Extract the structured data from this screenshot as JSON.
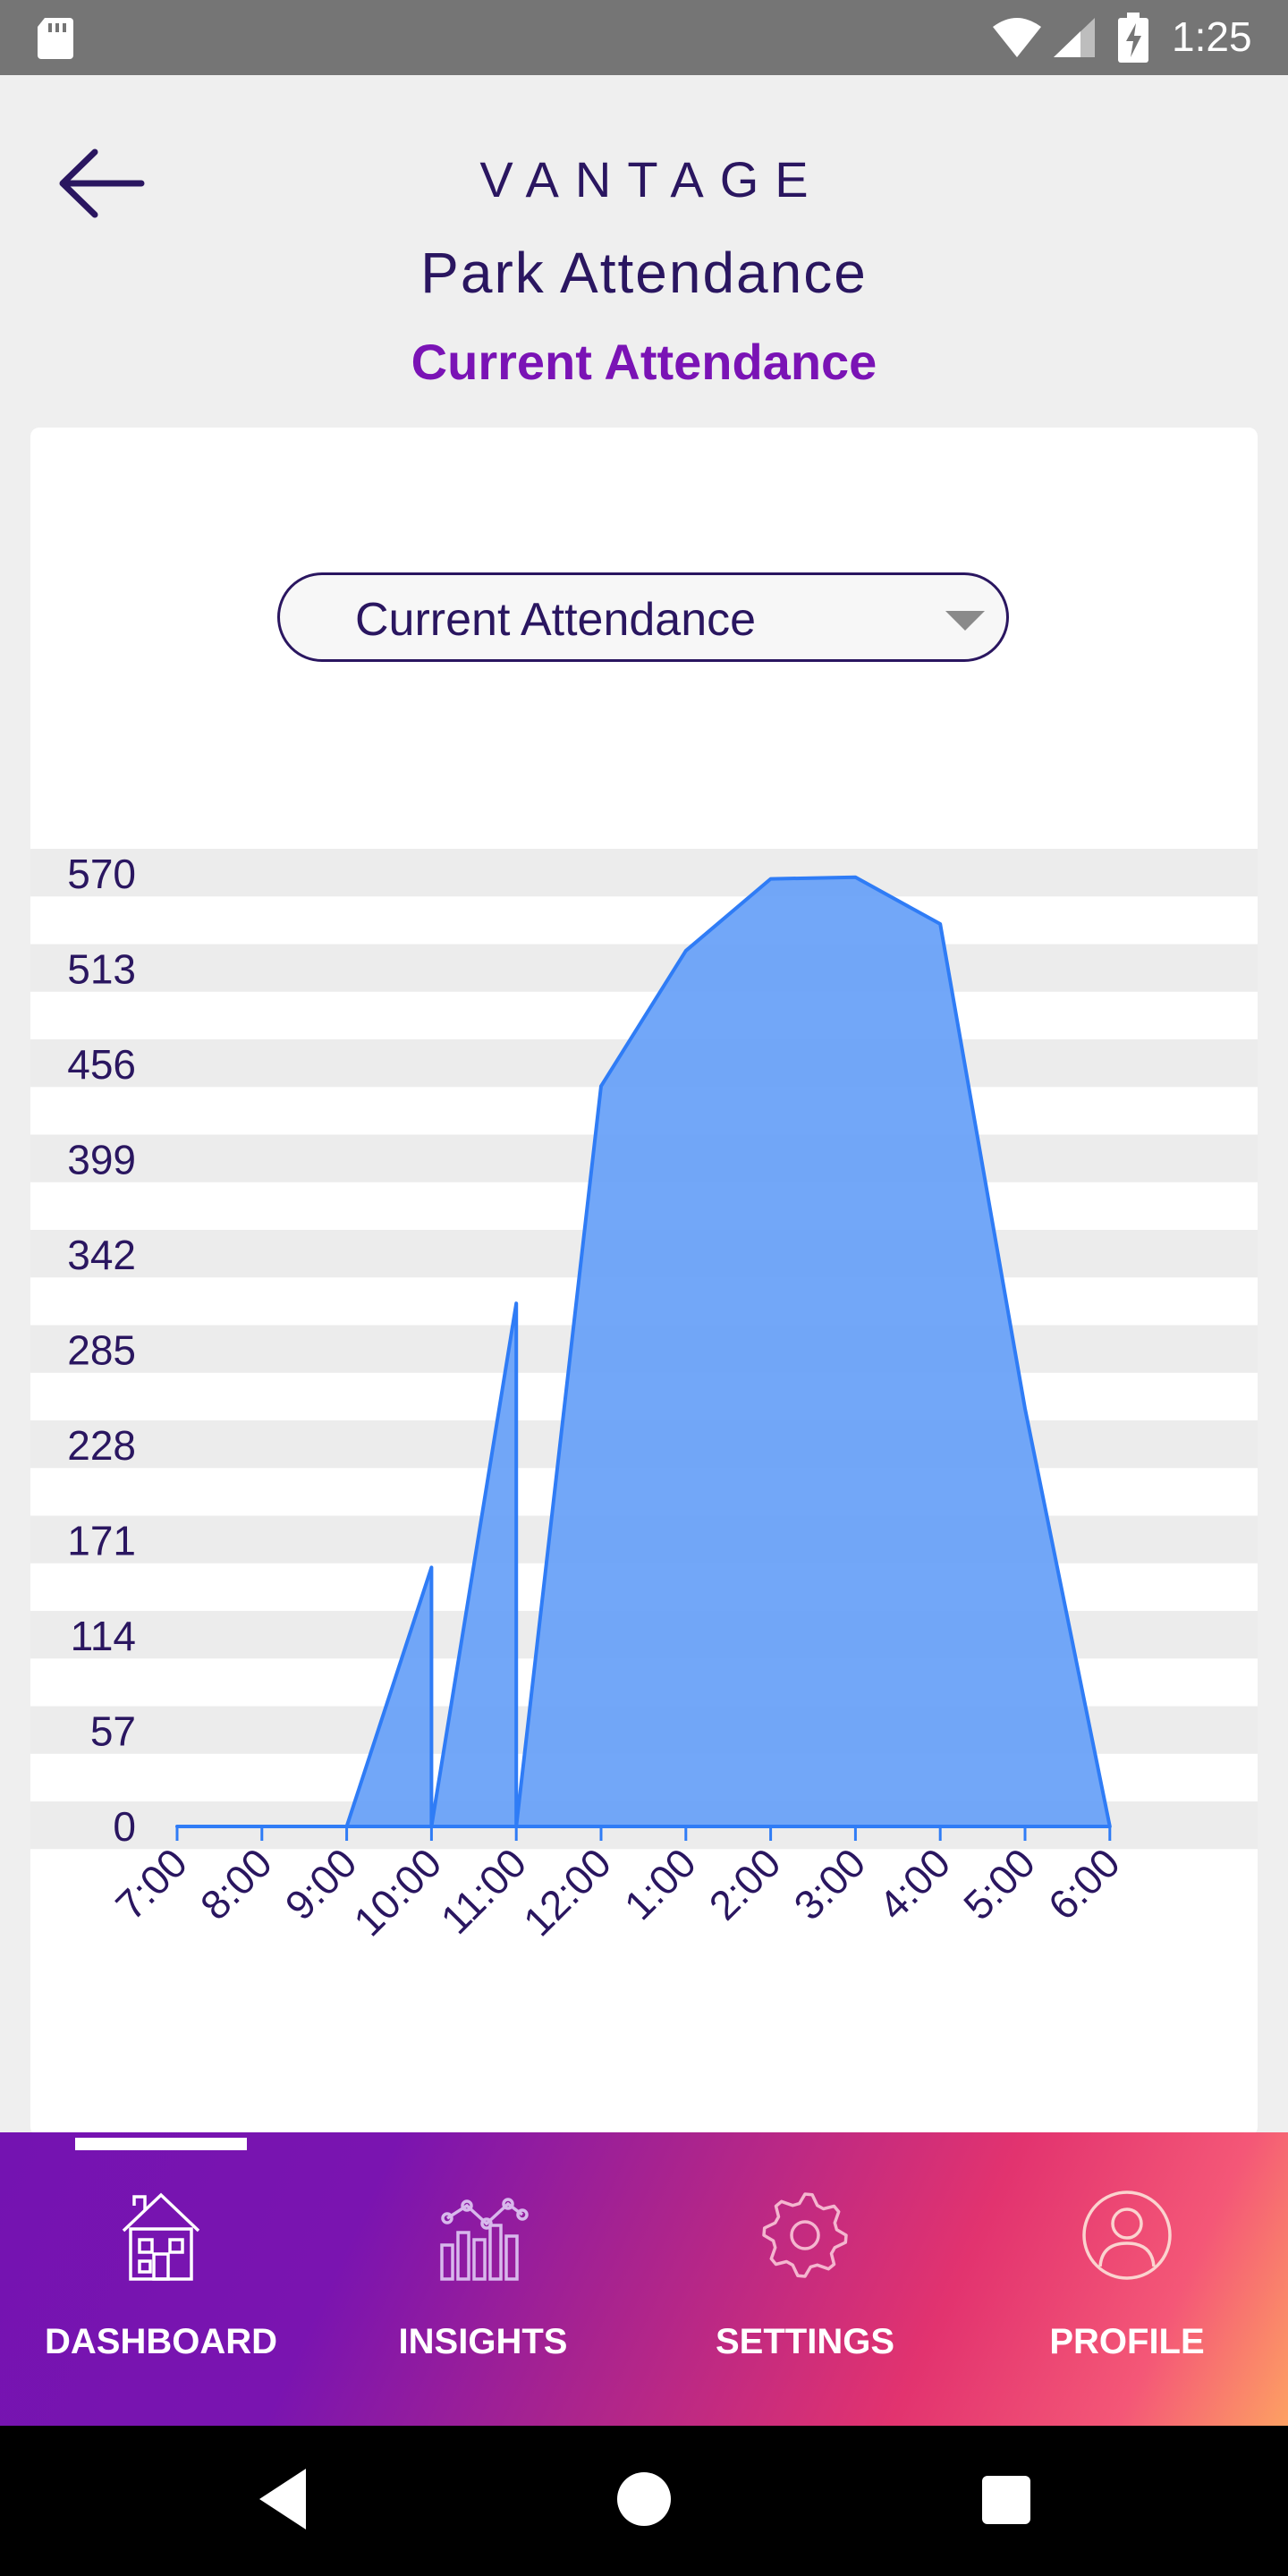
{
  "status_bar": {
    "time": "1:25",
    "icons": [
      "sd-card-icon",
      "wifi-icon",
      "signal-icon",
      "battery-charging-icon"
    ]
  },
  "header": {
    "brand": "VANTAGE",
    "title": "Park Attendance",
    "subtitle": "Current Attendance",
    "back_icon": "arrow-left-icon"
  },
  "dropdown": {
    "selected": "Current Attendance"
  },
  "chart_data": {
    "type": "area",
    "title": "",
    "xlabel": "",
    "ylabel": "",
    "categories": [
      "7:00",
      "8:00",
      "9:00",
      "10:00",
      "11:00",
      "12:00",
      "1:00",
      "2:00",
      "3:00",
      "4:00",
      "5:00",
      "6:00"
    ],
    "y_ticks": [
      "0",
      "57",
      "114",
      "171",
      "228",
      "285",
      "342",
      "399",
      "456",
      "513",
      "570"
    ],
    "ylim": [
      0,
      570
    ],
    "grid": "horizontal alternating bands",
    "color": "#2f7cf6",
    "fill_color": "#6aa2f8",
    "points": [
      {
        "x": 0,
        "y": 0
      },
      {
        "x": 1,
        "y": 0
      },
      {
        "x": 2,
        "y": 0
      },
      {
        "x": 3,
        "y": 155
      },
      {
        "x": 3,
        "y": 0
      },
      {
        "x": 4,
        "y": 313
      },
      {
        "x": 4,
        "y": 0
      },
      {
        "x": 5,
        "y": 443
      },
      {
        "x": 6,
        "y": 524
      },
      {
        "x": 7,
        "y": 567
      },
      {
        "x": 8,
        "y": 568
      },
      {
        "x": 9,
        "y": 540
      },
      {
        "x": 10,
        "y": 250
      },
      {
        "x": 11,
        "y": 0
      }
    ]
  },
  "bottom_nav": {
    "items": [
      {
        "label": "DASHBOARD",
        "icon": "house-icon",
        "active": true
      },
      {
        "label": "INSIGHTS",
        "icon": "insights-chart-icon",
        "active": false
      },
      {
        "label": "SETTINGS",
        "icon": "gear-icon",
        "active": false
      },
      {
        "label": "PROFILE",
        "icon": "user-icon",
        "active": false
      }
    ]
  },
  "system_nav": {
    "icons": [
      "back-triangle-icon",
      "home-circle-icon",
      "recents-square-icon"
    ]
  }
}
